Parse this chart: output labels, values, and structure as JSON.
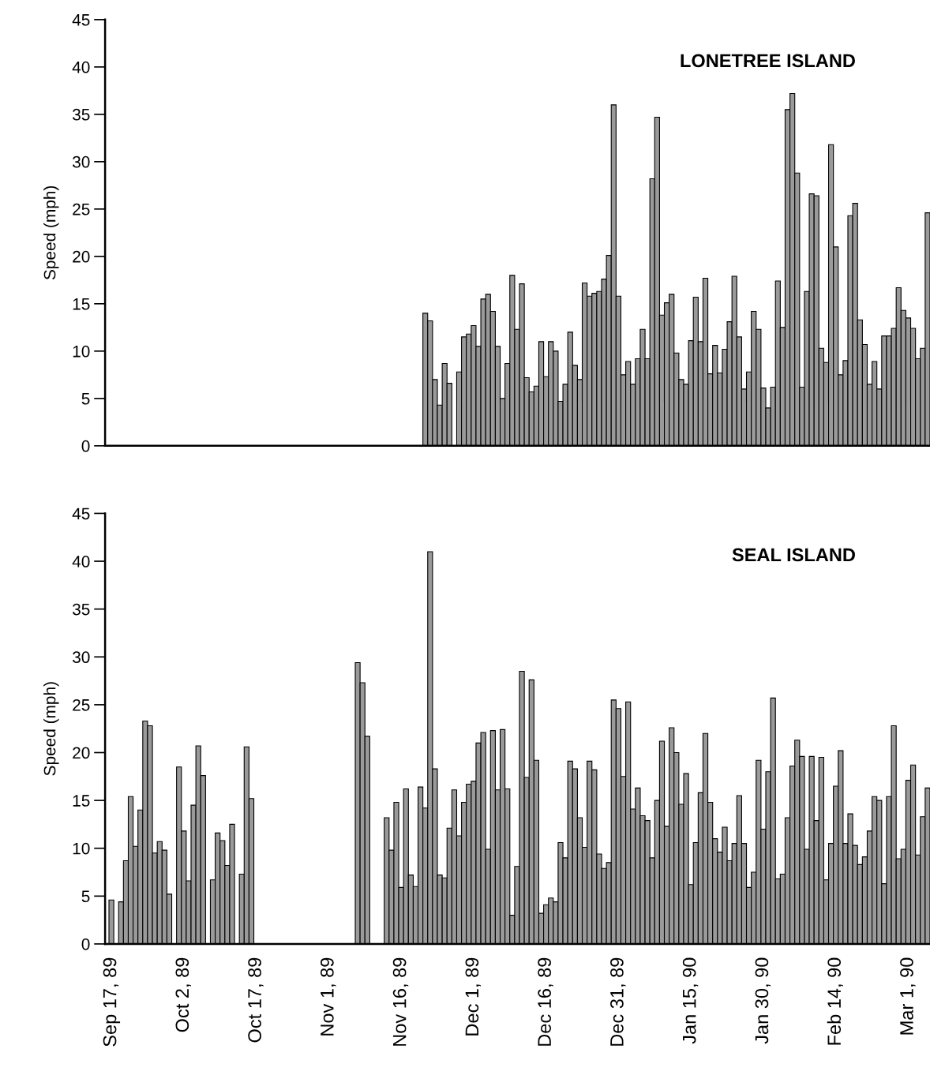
{
  "chart_data": [
    {
      "type": "bar",
      "title": "LONETREE ISLAND",
      "ylabel": "Speed (mph)",
      "tick_labels": "y",
      "ylim": [
        0,
        45
      ],
      "yticks": [
        0,
        5,
        10,
        15,
        20,
        25,
        30,
        35,
        40,
        45
      ],
      "grid": false,
      "legend": false,
      "categories": [
        null,
        null,
        null,
        null,
        null,
        null,
        null,
        null,
        null,
        null,
        null,
        null,
        null,
        null,
        null,
        null,
        null,
        null,
        null,
        null,
        null,
        null,
        null,
        null,
        null,
        null,
        null,
        null,
        null,
        null,
        null,
        null,
        null,
        null,
        null,
        null,
        null,
        null,
        null,
        null,
        null,
        null,
        null,
        null,
        null,
        null,
        null,
        null,
        null,
        null,
        null,
        null,
        null,
        null,
        null,
        null,
        null,
        null,
        null,
        null,
        null,
        null,
        null,
        null,
        null,
        null,
        null,
        null,
        null,
        null,
        null,
        null,
        null,
        null,
        null,
        null,
        null,
        null,
        null,
        null,
        null,
        null,
        null,
        null,
        null,
        null,
        null,
        null,
        null,
        null,
        null,
        null,
        null,
        null,
        null,
        null,
        null,
        null,
        null,
        null,
        null,
        null,
        null,
        null,
        null,
        null,
        null,
        null,
        null,
        null,
        null,
        null,
        null,
        null,
        null,
        null,
        null,
        null,
        null,
        null,
        null,
        null,
        null,
        null,
        null,
        null,
        null,
        null,
        null,
        null,
        null,
        null,
        null,
        null,
        null,
        null,
        null,
        null,
        null,
        null,
        null,
        null,
        null,
        null,
        null,
        null,
        null,
        null,
        null,
        null,
        null,
        null,
        null,
        null,
        null,
        null,
        null,
        null,
        null,
        null,
        null,
        null,
        null,
        null,
        null,
        null,
        null,
        null,
        null,
        null
      ],
      "series": [
        {
          "color": "#9a9a9a",
          "values": [
            null,
            null,
            null,
            null,
            null,
            null,
            null,
            null,
            null,
            null,
            null,
            null,
            null,
            null,
            null,
            null,
            null,
            null,
            null,
            null,
            null,
            null,
            null,
            null,
            null,
            null,
            null,
            null,
            null,
            null,
            null,
            null,
            null,
            null,
            null,
            null,
            null,
            null,
            null,
            null,
            null,
            null,
            null,
            null,
            null,
            null,
            null,
            null,
            null,
            null,
            null,
            null,
            null,
            null,
            null,
            null,
            null,
            null,
            null,
            null,
            null,
            null,
            null,
            null,
            null,
            14,
            13.2,
            7,
            4.3,
            8.7,
            6.6,
            null,
            7.8,
            11.5,
            11.8,
            12.7,
            10.5,
            15.5,
            16,
            14.2,
            10.5,
            5,
            8.7,
            18,
            12.3,
            17.1,
            7.2,
            5.7,
            6.3,
            11,
            7.3,
            11,
            10,
            4.7,
            6.5,
            12,
            8.5,
            7,
            17.2,
            15.8,
            16.1,
            16.3,
            17.6,
            20.1,
            36,
            15.8,
            7.5,
            8.9,
            6.5,
            9.2,
            12.3,
            9.2,
            28.2,
            34.7,
            13.8,
            15.1,
            16,
            9.8,
            7,
            6.5,
            11.1,
            15.7,
            11,
            17.7,
            7.6,
            10.6,
            7.7,
            10.2,
            13.1,
            17.9,
            11.5,
            6,
            7.8,
            14.2,
            12.3,
            6.1,
            4,
            6.2,
            17.4,
            12.5,
            35.5,
            37.2,
            28.8,
            6.2,
            16.3,
            26.6,
            26.4,
            10.3,
            8.8,
            31.8,
            21,
            7.5,
            9,
            24.3,
            25.6,
            13.3,
            10.7,
            6.5,
            8.9,
            6,
            11.6,
            11.6,
            12.4,
            16.7,
            14.3,
            13.5,
            12.4,
            9.2,
            10.3,
            24.6
          ]
        }
      ]
    },
    {
      "type": "bar",
      "title": "SEAL ISLAND",
      "ylabel": "Speed (mph)",
      "ylim": [
        0,
        45
      ],
      "yticks": [
        0,
        5,
        10,
        15,
        20,
        25,
        30,
        35,
        40,
        45
      ],
      "grid": false,
      "legend": false,
      "categories": [
        "Sep 17, 89",
        null,
        null,
        null,
        null,
        null,
        null,
        null,
        null,
        null,
        null,
        null,
        null,
        null,
        null,
        "Oct 2, 89",
        null,
        null,
        null,
        null,
        null,
        null,
        null,
        null,
        null,
        null,
        null,
        null,
        null,
        null,
        "Oct 17, 89",
        null,
        null,
        null,
        null,
        null,
        null,
        null,
        null,
        null,
        null,
        null,
        null,
        null,
        null,
        "Nov 1, 89",
        null,
        null,
        null,
        null,
        null,
        null,
        null,
        null,
        null,
        null,
        null,
        null,
        null,
        null,
        "Nov 16, 89",
        null,
        null,
        null,
        null,
        null,
        null,
        null,
        null,
        null,
        null,
        null,
        null,
        null,
        null,
        "Dec 1, 89",
        null,
        null,
        null,
        null,
        null,
        null,
        null,
        null,
        null,
        null,
        null,
        null,
        null,
        null,
        "Dec 16, 89",
        null,
        null,
        null,
        null,
        null,
        null,
        null,
        null,
        null,
        null,
        null,
        null,
        null,
        null,
        "Dec 31, 89",
        null,
        null,
        null,
        null,
        null,
        null,
        null,
        null,
        null,
        null,
        null,
        null,
        null,
        null,
        "Jan 15, 90",
        null,
        null,
        null,
        null,
        null,
        null,
        null,
        null,
        null,
        null,
        null,
        null,
        null,
        null,
        "Jan 30, 90",
        null,
        null,
        null,
        null,
        null,
        null,
        null,
        null,
        null,
        null,
        null,
        null,
        null,
        null,
        "Feb 14, 90",
        null,
        null,
        null,
        null,
        null,
        null,
        null,
        null,
        null,
        null,
        null,
        null,
        null,
        null,
        "Mar 1, 90",
        null,
        null,
        null,
        null
      ],
      "series": [
        {
          "color": "#9a9a9a",
          "values": [
            4.6,
            null,
            4.4,
            8.7,
            15.4,
            10.2,
            14,
            23.3,
            22.8,
            9.5,
            10.7,
            9.8,
            5.2,
            null,
            18.5,
            11.8,
            6.6,
            14.5,
            20.7,
            17.6,
            null,
            6.7,
            11.6,
            10.8,
            8.2,
            12.5,
            null,
            7.3,
            20.6,
            15.2,
            null,
            null,
            null,
            null,
            null,
            null,
            null,
            null,
            null,
            null,
            null,
            null,
            null,
            null,
            null,
            null,
            null,
            null,
            null,
            null,
            null,
            29.4,
            27.3,
            21.7,
            null,
            null,
            null,
            13.2,
            9.8,
            14.8,
            5.9,
            16.2,
            7.2,
            6,
            16.4,
            14.2,
            41,
            18.3,
            7.2,
            6.9,
            12.1,
            16.1,
            11.3,
            14.8,
            16.7,
            17,
            21,
            22.1,
            9.9,
            22.3,
            16.1,
            22.4,
            16.2,
            3,
            8.1,
            28.5,
            17.4,
            27.6,
            19.2,
            3.2,
            4.1,
            4.8,
            4.4,
            10.6,
            9,
            19.1,
            18.3,
            13.2,
            10.1,
            19.1,
            18.2,
            9.4,
            7.9,
            8.5,
            25.5,
            24.6,
            17.5,
            25.3,
            14.1,
            16.3,
            13.4,
            12.9,
            9,
            15,
            21.2,
            12.3,
            22.6,
            20,
            14.6,
            17.8,
            6.2,
            10.6,
            15.8,
            22,
            14.8,
            11,
            9.6,
            12.2,
            8.7,
            10.5,
            15.5,
            10.5,
            5.9,
            7.5,
            19.2,
            12,
            18,
            25.7,
            6.8,
            7.3,
            13.2,
            18.6,
            21.3,
            19.6,
            9.9,
            19.6,
            12.9,
            19.5,
            6.7,
            10.5,
            16.5,
            20.2,
            10.5,
            13.6,
            10.3,
            8.3,
            9.1,
            11.8,
            15.4,
            15,
            6.3,
            15.4,
            22.8,
            8.9,
            9.9,
            17.1,
            18.7,
            9.3,
            13.3,
            16.3
          ]
        }
      ]
    }
  ]
}
